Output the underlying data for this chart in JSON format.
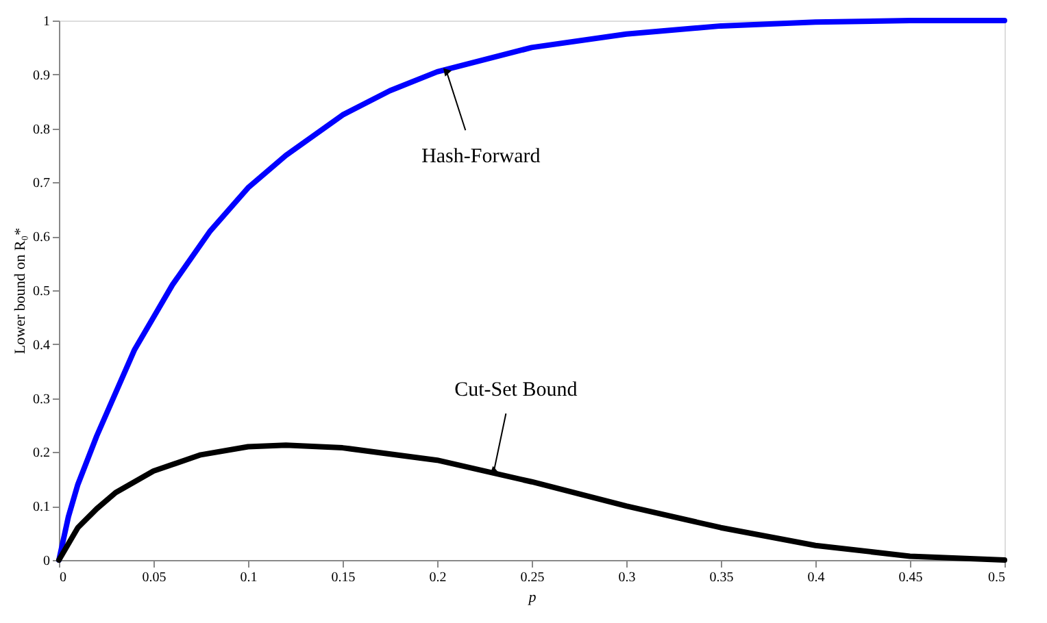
{
  "chart_data": {
    "type": "line",
    "xlabel": "p",
    "ylabel": "Lower bound on R₀*",
    "xlim": [
      0,
      0.5
    ],
    "ylim": [
      0,
      1
    ],
    "xticks": [
      0,
      0.05,
      0.1,
      0.15,
      0.2,
      0.25,
      0.3,
      0.35,
      0.4,
      0.45,
      0.5
    ],
    "yticks": [
      0,
      0.1,
      0.2,
      0.3,
      0.4,
      0.5,
      0.6,
      0.7,
      0.8,
      0.9,
      1
    ],
    "grid": false,
    "marker": "none",
    "line_style": "solid",
    "series": [
      {
        "color": "#0000ff",
        "x": [
          0,
          0.005,
          0.01,
          0.02,
          0.03,
          0.04,
          0.05,
          0.06,
          0.08,
          0.1,
          0.12,
          0.15,
          0.175,
          0.2,
          0.25,
          0.3,
          0.35,
          0.4,
          0.45,
          0.5
        ],
        "values": [
          0,
          0.08,
          0.14,
          0.23,
          0.31,
          0.39,
          0.45,
          0.51,
          0.61,
          0.69,
          0.75,
          0.825,
          0.87,
          0.905,
          0.95,
          0.975,
          0.99,
          0.997,
          1,
          1
        ]
      },
      {
        "color": "#000000",
        "x": [
          0,
          0.01,
          0.02,
          0.03,
          0.05,
          0.075,
          0.1,
          0.12,
          0.15,
          0.2,
          0.25,
          0.3,
          0.35,
          0.4,
          0.45,
          0.5
        ],
        "values": [
          0,
          0.06,
          0.095,
          0.125,
          0.165,
          0.195,
          0.21,
          0.213,
          0.208,
          0.185,
          0.145,
          0.1,
          0.06,
          0.027,
          0.007,
          0
        ]
      }
    ],
    "annotations": [
      {
        "text": "Hash-Forward",
        "x": 0.205,
        "y": 0.905
      },
      {
        "text": "Cut-Set Bound",
        "x": 0.23,
        "y": 0.165
      }
    ]
  }
}
